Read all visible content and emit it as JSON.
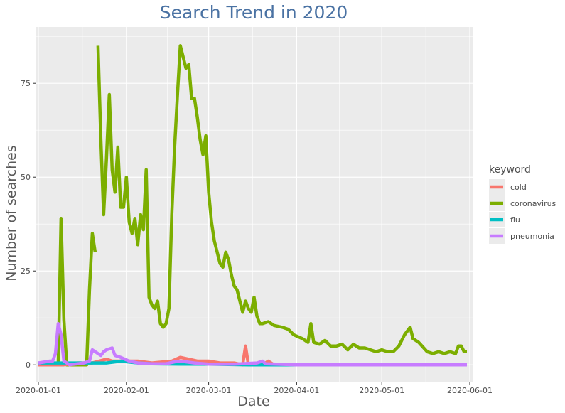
{
  "chart_data": {
    "type": "line",
    "title": "Search Trend in 2020",
    "xlabel": "Date",
    "ylabel": "Number of searches",
    "x_axis_type": "date",
    "xlim": [
      "2019-12-31",
      "2020-06-02"
    ],
    "ylim": [
      -4.5,
      90
    ],
    "x_ticks": [
      "2020-01-01",
      "2020-02-01",
      "2020-03-01",
      "2020-04-01",
      "2020-05-01",
      "2020-06-01"
    ],
    "y_ticks": [
      0,
      25,
      50,
      75
    ],
    "grid": true,
    "legend": {
      "title": "keyword",
      "position": "right"
    },
    "series": [
      {
        "name": "coronavirus",
        "color": "#7cae00",
        "points": [
          [
            "2020-01-01",
            0
          ],
          [
            "2020-01-05",
            0
          ],
          [
            "2020-01-08",
            0
          ],
          [
            "2020-01-09",
            39
          ],
          [
            "2020-01-10",
            12
          ],
          [
            "2020-01-11",
            0
          ],
          [
            "2020-01-18",
            0
          ],
          [
            "2020-01-19",
            20
          ],
          [
            "2020-01-20",
            35
          ],
          [
            "2020-01-21",
            30
          ],
          null,
          [
            "2020-01-22",
            85
          ],
          [
            "2020-01-23",
            60
          ],
          [
            "2020-01-24",
            40
          ],
          [
            "2020-01-25",
            55
          ],
          [
            "2020-01-26",
            72
          ],
          [
            "2020-01-27",
            52
          ],
          [
            "2020-01-28",
            46
          ],
          [
            "2020-01-29",
            58
          ],
          [
            "2020-01-30",
            42
          ],
          [
            "2020-01-31",
            42
          ],
          [
            "2020-02-01",
            50
          ],
          [
            "2020-02-02",
            38
          ],
          [
            "2020-02-03",
            35
          ],
          [
            "2020-02-04",
            39
          ],
          [
            "2020-02-05",
            32
          ],
          [
            "2020-02-06",
            40
          ],
          [
            "2020-02-07",
            36
          ],
          [
            "2020-02-08",
            52
          ],
          [
            "2020-02-09",
            18
          ],
          [
            "2020-02-10",
            16
          ],
          [
            "2020-02-11",
            15
          ],
          [
            "2020-02-12",
            17
          ],
          [
            "2020-02-13",
            11
          ],
          [
            "2020-02-14",
            10
          ],
          [
            "2020-02-15",
            11
          ],
          [
            "2020-02-16",
            15
          ],
          [
            "2020-02-17",
            40
          ],
          [
            "2020-02-18",
            58
          ],
          [
            "2020-02-19",
            72
          ],
          [
            "2020-02-20",
            85
          ],
          [
            "2020-02-21",
            82
          ],
          [
            "2020-02-22",
            79
          ],
          [
            "2020-02-23",
            80
          ],
          [
            "2020-02-24",
            71
          ],
          [
            "2020-02-25",
            71
          ],
          [
            "2020-02-26",
            66
          ],
          [
            "2020-02-27",
            60
          ],
          [
            "2020-02-28",
            56
          ],
          [
            "2020-02-29",
            61
          ],
          [
            "2020-03-01",
            46
          ],
          [
            "2020-03-02",
            38
          ],
          [
            "2020-03-03",
            33
          ],
          [
            "2020-03-04",
            30
          ],
          [
            "2020-03-05",
            27
          ],
          [
            "2020-03-06",
            26
          ],
          [
            "2020-03-07",
            30
          ],
          [
            "2020-03-08",
            28
          ],
          [
            "2020-03-09",
            24
          ],
          [
            "2020-03-10",
            21
          ],
          [
            "2020-03-11",
            20
          ],
          [
            "2020-03-12",
            17
          ],
          [
            "2020-03-13",
            14
          ],
          [
            "2020-03-14",
            17
          ],
          [
            "2020-03-15",
            15
          ],
          [
            "2020-03-16",
            14
          ],
          [
            "2020-03-17",
            18
          ],
          [
            "2020-03-18",
            13
          ],
          [
            "2020-03-19",
            11
          ],
          [
            "2020-03-20",
            11
          ],
          [
            "2020-03-22",
            11.5
          ],
          [
            "2020-03-24",
            10.5
          ],
          [
            "2020-03-27",
            10
          ],
          [
            "2020-03-29",
            9.5
          ],
          [
            "2020-03-31",
            8
          ],
          [
            "2020-04-03",
            7
          ],
          [
            "2020-04-05",
            6
          ],
          [
            "2020-04-06",
            11
          ],
          [
            "2020-04-07",
            6
          ],
          [
            "2020-04-09",
            5.5
          ],
          [
            "2020-04-11",
            6.5
          ],
          [
            "2020-04-13",
            5
          ],
          [
            "2020-04-15",
            5
          ],
          [
            "2020-04-17",
            5.5
          ],
          [
            "2020-04-19",
            4
          ],
          [
            "2020-04-21",
            5.5
          ],
          [
            "2020-04-23",
            4.5
          ],
          [
            "2020-04-25",
            4.5
          ],
          [
            "2020-04-27",
            4
          ],
          [
            "2020-04-29",
            3.5
          ],
          [
            "2020-05-01",
            4
          ],
          [
            "2020-05-03",
            3.5
          ],
          [
            "2020-05-05",
            3.5
          ],
          [
            "2020-05-07",
            5
          ],
          [
            "2020-05-09",
            8
          ],
          [
            "2020-05-11",
            10
          ],
          [
            "2020-05-12",
            7
          ],
          [
            "2020-05-14",
            6
          ],
          [
            "2020-05-17",
            3.5
          ],
          [
            "2020-05-19",
            3
          ],
          [
            "2020-05-21",
            3.5
          ],
          [
            "2020-05-23",
            3
          ],
          [
            "2020-05-25",
            3.5
          ],
          [
            "2020-05-27",
            3
          ],
          [
            "2020-05-28",
            5
          ],
          [
            "2020-05-29",
            5
          ],
          [
            "2020-05-30",
            3.5
          ],
          [
            "2020-05-31",
            3.5
          ]
        ]
      },
      {
        "name": "cold",
        "color": "#f8766d",
        "points": [
          [
            "2020-01-01",
            0
          ],
          [
            "2020-01-10",
            0
          ],
          [
            "2020-01-15",
            0.5
          ],
          [
            "2020-01-20",
            0.5
          ],
          [
            "2020-01-25",
            1.5
          ],
          [
            "2020-01-27",
            1
          ],
          [
            "2020-01-30",
            1
          ],
          [
            "2020-02-05",
            1
          ],
          [
            "2020-02-10",
            0.5
          ],
          [
            "2020-02-17",
            1
          ],
          [
            "2020-02-20",
            2
          ],
          [
            "2020-02-23",
            1.5
          ],
          [
            "2020-02-26",
            1
          ],
          [
            "2020-03-01",
            1
          ],
          [
            "2020-03-05",
            0.5
          ],
          [
            "2020-03-10",
            0.5
          ],
          [
            "2020-03-13",
            0
          ],
          [
            "2020-03-14",
            5
          ],
          [
            "2020-03-15",
            0
          ],
          [
            "2020-03-20",
            0
          ],
          [
            "2020-03-22",
            1
          ],
          [
            "2020-03-24",
            0
          ],
          [
            "2020-05-31",
            0
          ]
        ]
      },
      {
        "name": "flu",
        "color": "#00bfc4",
        "points": [
          [
            "2020-01-01",
            0.5
          ],
          [
            "2020-01-10",
            0.5
          ],
          [
            "2020-01-20",
            0.5
          ],
          [
            "2020-01-25",
            0.5
          ],
          [
            "2020-01-30",
            1
          ],
          [
            "2020-02-05",
            0.5
          ],
          [
            "2020-02-10",
            0.3
          ],
          [
            "2020-02-20",
            0.2
          ],
          [
            "2020-03-01",
            0.2
          ],
          [
            "2020-03-15",
            0
          ],
          [
            "2020-05-31",
            0
          ]
        ]
      },
      {
        "name": "pneumonia",
        "color": "#c77cff",
        "points": [
          [
            "2020-01-01",
            0.5
          ],
          [
            "2020-01-05",
            1
          ],
          [
            "2020-01-06",
            1
          ],
          [
            "2020-01-07",
            3
          ],
          [
            "2020-01-08",
            11
          ],
          [
            "2020-01-09",
            8
          ],
          [
            "2020-01-10",
            1
          ],
          [
            "2020-01-12",
            0
          ],
          [
            "2020-01-17",
            0.5
          ],
          [
            "2020-01-19",
            1
          ],
          [
            "2020-01-20",
            4
          ],
          [
            "2020-01-22",
            3
          ],
          [
            "2020-01-23",
            2.5
          ],
          [
            "2020-01-24",
            3.5
          ],
          [
            "2020-01-25",
            4
          ],
          [
            "2020-01-27",
            4.5
          ],
          [
            "2020-01-28",
            2.5
          ],
          [
            "2020-01-30",
            2
          ],
          [
            "2020-02-02",
            1
          ],
          [
            "2020-02-05",
            0.5
          ],
          [
            "2020-02-10",
            0.3
          ],
          [
            "2020-02-15",
            0.3
          ],
          [
            "2020-02-18",
            0.8
          ],
          [
            "2020-02-20",
            1
          ],
          [
            "2020-02-25",
            0.5
          ],
          [
            "2020-03-01",
            0.2
          ],
          [
            "2020-03-10",
            0.2
          ],
          [
            "2020-03-18",
            0.5
          ],
          [
            "2020-03-20",
            1
          ],
          [
            "2020-03-21",
            0.3
          ],
          [
            "2020-04-01",
            0
          ],
          [
            "2020-05-31",
            0
          ]
        ]
      }
    ]
  }
}
